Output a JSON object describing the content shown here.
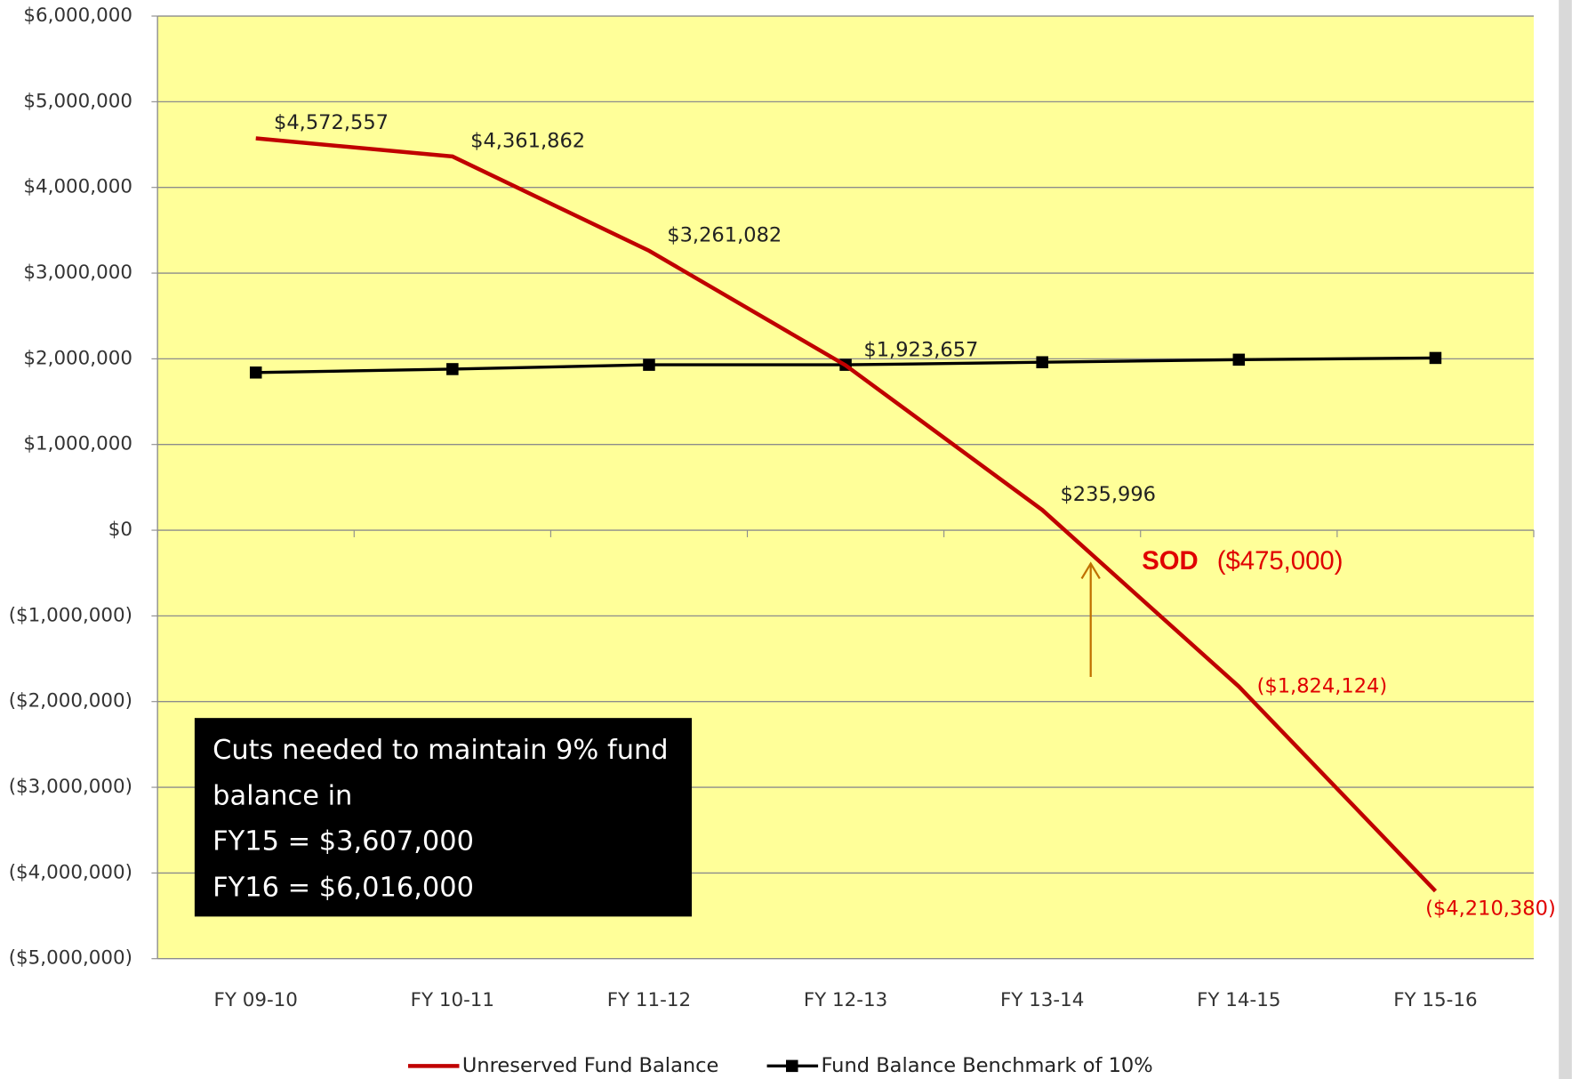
{
  "chart_data": {
    "type": "line",
    "categories": [
      "FY 09-10",
      "FY 10-11",
      "FY 11-12",
      "FY 12-13",
      "FY 13-14",
      "FY 14-15",
      "FY 15-16"
    ],
    "series": [
      {
        "name": "Unreserved Fund Balance",
        "color": "#c00000",
        "values": [
          4572557,
          4361862,
          3261082,
          1923657,
          235996,
          -1824124,
          -4210380
        ],
        "value_labels": [
          "$4,572,557",
          "$4,361,862",
          "$3,261,082",
          "$1,923,657",
          "$235,996",
          "($1,824,124)",
          "($4,210,380)"
        ]
      },
      {
        "name": "Fund Balance Benchmark of 10%",
        "color": "#000000",
        "marker": "square",
        "values": [
          1840000,
          1880000,
          1930000,
          1930000,
          1960000,
          1990000,
          2010000
        ]
      }
    ],
    "ylim": [
      -5000000,
      6000000
    ],
    "yticks": [
      {
        "value": -5000000,
        "label": "($5,000,000)"
      },
      {
        "value": -4000000,
        "label": "($4,000,000)"
      },
      {
        "value": -3000000,
        "label": "($3,000,000)"
      },
      {
        "value": -2000000,
        "label": "($2,000,000)"
      },
      {
        "value": -1000000,
        "label": "($1,000,000)"
      },
      {
        "value": 0,
        "label": "$0"
      },
      {
        "value": 1000000,
        "label": "$1,000,000"
      },
      {
        "value": 2000000,
        "label": "$2,000,000"
      },
      {
        "value": 3000000,
        "label": "$3,000,000"
      },
      {
        "value": 4000000,
        "label": "$4,000,000"
      },
      {
        "value": 5000000,
        "label": "$5,000,000"
      },
      {
        "value": 6000000,
        "label": "$6,000,000"
      }
    ],
    "grid": true,
    "legend": "bottom",
    "plot_background": "#ffff99",
    "annotations": {
      "sod_label": "SOD",
      "sod_value": "($475,000)"
    },
    "note_box": [
      "Cuts needed to maintain 9% fund",
      "balance in",
      "FY15 = $3,607,000",
      "FY16 = $6,016,000"
    ]
  }
}
